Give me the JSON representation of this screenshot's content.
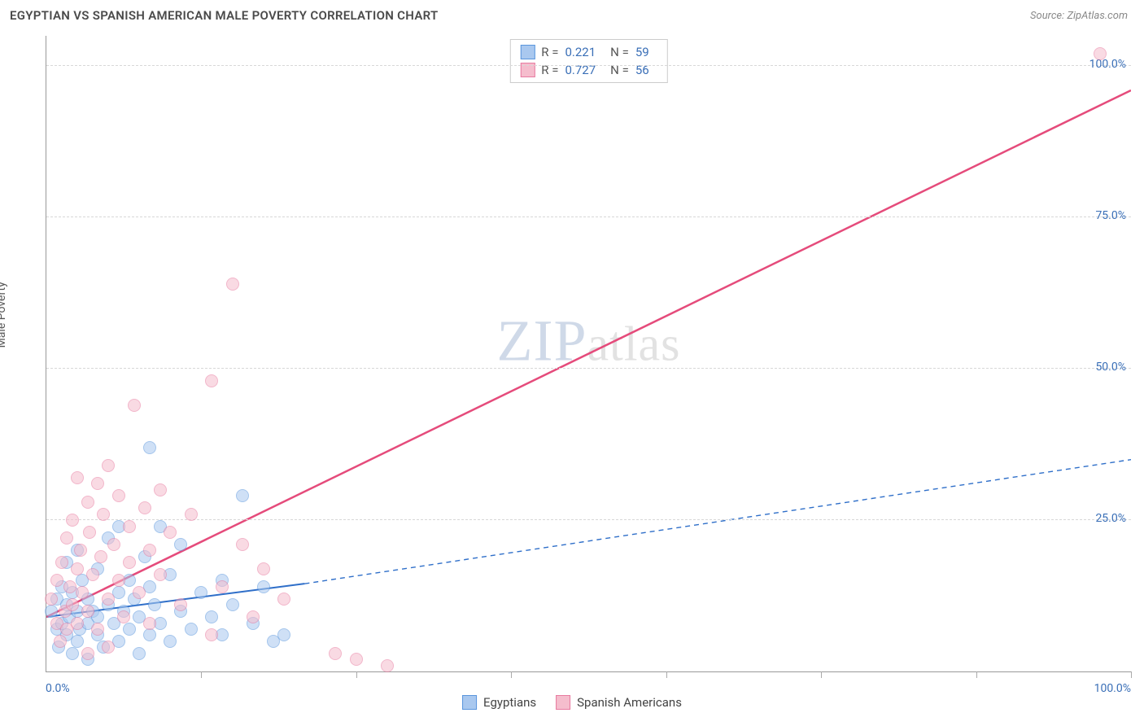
{
  "header": {
    "title": "EGYPTIAN VS SPANISH AMERICAN MALE POVERTY CORRELATION CHART",
    "source_prefix": "Source: ",
    "source_name": "ZipAtlas.com"
  },
  "watermark": {
    "part1": "ZIP",
    "part2": "atlas"
  },
  "chart": {
    "type": "scatter",
    "ylabel": "Male Poverty",
    "xlim": [
      0,
      105
    ],
    "ylim": [
      0,
      105
    ],
    "background_color": "#ffffff",
    "grid_color": "#d8d8d8",
    "axis_color": "#999999",
    "tick_label_color": "#3a6fb7",
    "y_ticks": [
      {
        "v": 25,
        "label": "25.0%"
      },
      {
        "v": 50,
        "label": "50.0%"
      },
      {
        "v": 75,
        "label": "75.0%"
      },
      {
        "v": 100,
        "label": "100.0%"
      }
    ],
    "x_tick_positions": [
      15,
      30,
      45,
      60,
      75,
      90,
      105
    ],
    "x_min_label": "0.0%",
    "x_max_label": "100.0%",
    "point_radius": 8,
    "point_opacity": 0.55,
    "series": [
      {
        "name": "Egyptians",
        "color_fill": "#a9c8ef",
        "color_stroke": "#5a96dd",
        "r_value": "0.221",
        "n_value": "59",
        "trend": {
          "x1": 0,
          "y1": 9,
          "x2_solid": 25,
          "y2_solid": 14.5,
          "x2": 105,
          "y2": 35,
          "dash": true,
          "color": "#2f6fc9",
          "width": 2
        },
        "points": [
          [
            0.5,
            10
          ],
          [
            1,
            7
          ],
          [
            1,
            12
          ],
          [
            1.2,
            4
          ],
          [
            1.5,
            14
          ],
          [
            1.5,
            8
          ],
          [
            2,
            6
          ],
          [
            2,
            11
          ],
          [
            2,
            18
          ],
          [
            2.2,
            9
          ],
          [
            2.5,
            3
          ],
          [
            2.5,
            13
          ],
          [
            3,
            5
          ],
          [
            3,
            10
          ],
          [
            3,
            20
          ],
          [
            3.2,
            7
          ],
          [
            3.5,
            15
          ],
          [
            4,
            8
          ],
          [
            4,
            12
          ],
          [
            4,
            2
          ],
          [
            4.5,
            10
          ],
          [
            5,
            6
          ],
          [
            5,
            17
          ],
          [
            5,
            9
          ],
          [
            5.5,
            4
          ],
          [
            6,
            11
          ],
          [
            6,
            22
          ],
          [
            6.5,
            8
          ],
          [
            7,
            13
          ],
          [
            7,
            5
          ],
          [
            7,
            24
          ],
          [
            7.5,
            10
          ],
          [
            8,
            15
          ],
          [
            8,
            7
          ],
          [
            8.5,
            12
          ],
          [
            9,
            3
          ],
          [
            9,
            9
          ],
          [
            9.5,
            19
          ],
          [
            10,
            6
          ],
          [
            10,
            14
          ],
          [
            10,
            37
          ],
          [
            10.5,
            11
          ],
          [
            11,
            8
          ],
          [
            11,
            24
          ],
          [
            12,
            16
          ],
          [
            12,
            5
          ],
          [
            13,
            10
          ],
          [
            13,
            21
          ],
          [
            14,
            7
          ],
          [
            15,
            13
          ],
          [
            16,
            9
          ],
          [
            17,
            15
          ],
          [
            17,
            6
          ],
          [
            18,
            11
          ],
          [
            19,
            29
          ],
          [
            20,
            8
          ],
          [
            21,
            14
          ],
          [
            22,
            5
          ],
          [
            23,
            6
          ]
        ]
      },
      {
        "name": "Spanish Americans",
        "color_fill": "#f5bdcd",
        "color_stroke": "#e87ba0",
        "r_value": "0.727",
        "n_value": "56",
        "trend": {
          "x1": 0,
          "y1": 9,
          "x2_solid": 105,
          "y2_solid": 96,
          "x2": 105,
          "y2": 96,
          "dash": false,
          "color": "#e54b7b",
          "width": 2.5
        },
        "points": [
          [
            0.5,
            12
          ],
          [
            1,
            8
          ],
          [
            1,
            15
          ],
          [
            1.3,
            5
          ],
          [
            1.5,
            18
          ],
          [
            1.8,
            10
          ],
          [
            2,
            22
          ],
          [
            2,
            7
          ],
          [
            2.3,
            14
          ],
          [
            2.5,
            25
          ],
          [
            2.5,
            11
          ],
          [
            3,
            32
          ],
          [
            3,
            17
          ],
          [
            3,
            8
          ],
          [
            3.3,
            20
          ],
          [
            3.5,
            13
          ],
          [
            4,
            28
          ],
          [
            4,
            10
          ],
          [
            4.2,
            23
          ],
          [
            4.5,
            16
          ],
          [
            5,
            31
          ],
          [
            5,
            7
          ],
          [
            5.3,
            19
          ],
          [
            5.5,
            26
          ],
          [
            6,
            12
          ],
          [
            6,
            34
          ],
          [
            6.5,
            21
          ],
          [
            7,
            15
          ],
          [
            7,
            29
          ],
          [
            7.5,
            9
          ],
          [
            8,
            24
          ],
          [
            8,
            18
          ],
          [
            8.5,
            44
          ],
          [
            9,
            13
          ],
          [
            9.5,
            27
          ],
          [
            10,
            20
          ],
          [
            10,
            8
          ],
          [
            11,
            30
          ],
          [
            11,
            16
          ],
          [
            12,
            23
          ],
          [
            13,
            11
          ],
          [
            14,
            26
          ],
          [
            16,
            48
          ],
          [
            16,
            6
          ],
          [
            17,
            14
          ],
          [
            18,
            64
          ],
          [
            19,
            21
          ],
          [
            20,
            9
          ],
          [
            21,
            17
          ],
          [
            23,
            12
          ],
          [
            28,
            3
          ],
          [
            30,
            2
          ],
          [
            33,
            1
          ],
          [
            102,
            102
          ],
          [
            4,
            3
          ],
          [
            6,
            4
          ]
        ]
      }
    ],
    "stats_legend": {
      "r_label": "R  =",
      "n_label": "N  ="
    },
    "bottom_legend": {
      "items": [
        "Egyptians",
        "Spanish Americans"
      ]
    }
  }
}
